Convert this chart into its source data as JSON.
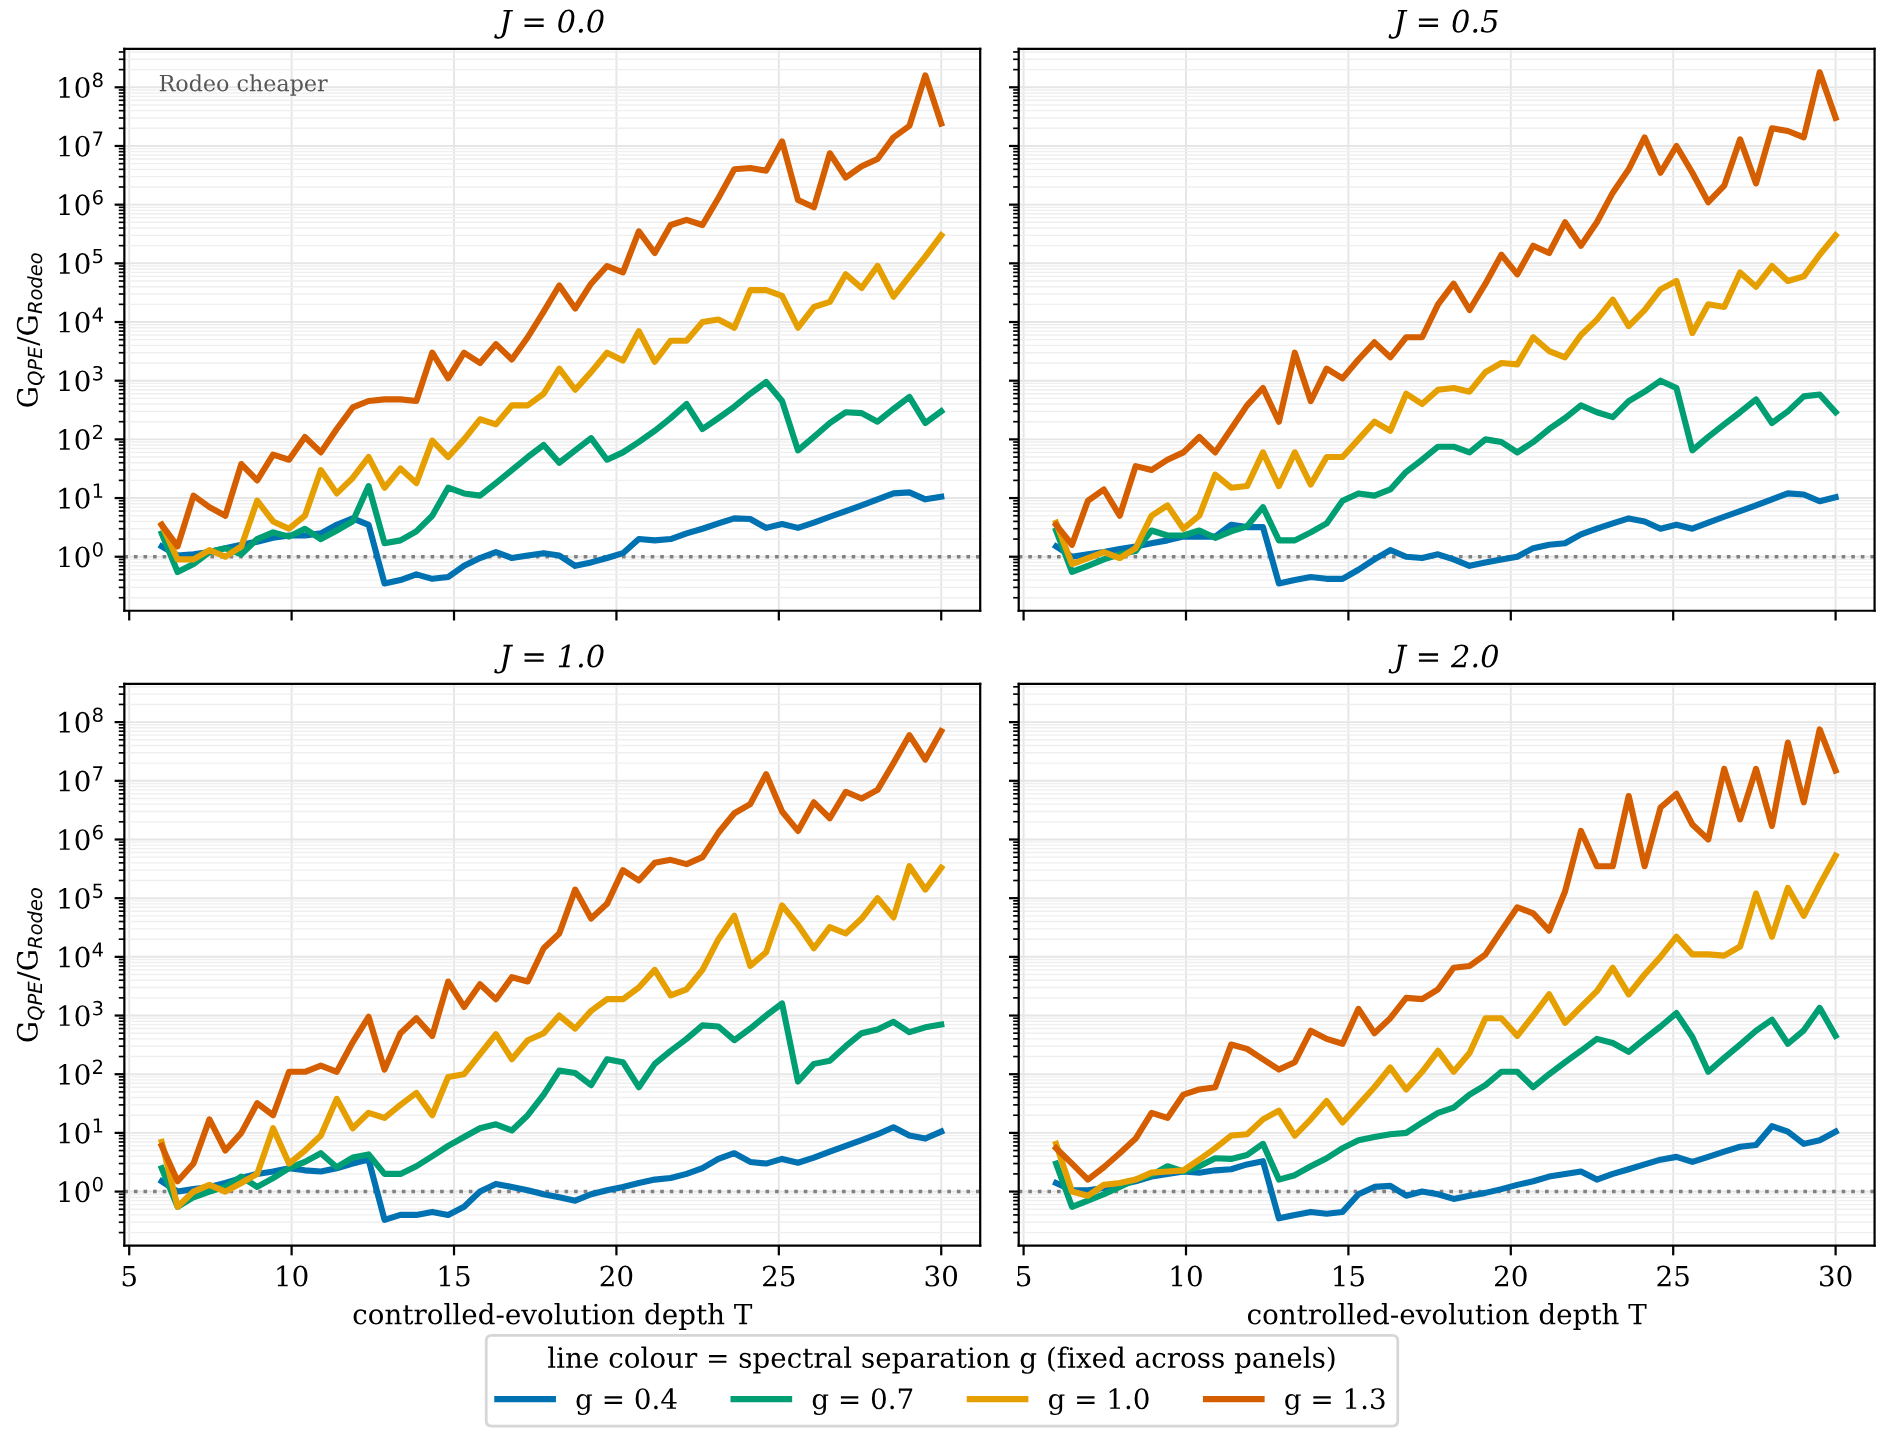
{
  "chart_data": [
    {
      "type": "line",
      "title": "J = 0.0",
      "ylabel": "G$_{QPE}$/G$_{Rodeo}$",
      "legend_title": "line colour = spectral separation g (fixed across panels)",
      "legend": "bottom",
      "log": "y",
      "grid": true,
      "tick_labels": "y",
      "annotations": [
        "Rodeo cheaper"
      ],
      "x": [
        6.0,
        6.49,
        6.98,
        7.47,
        7.96,
        8.45,
        8.94,
        9.43,
        9.92,
        10.41,
        10.9,
        11.39,
        11.88,
        12.37,
        12.86,
        13.35,
        13.84,
        14.33,
        14.82,
        15.31,
        15.8,
        16.29,
        16.78,
        17.27,
        17.76,
        18.24,
        18.73,
        19.22,
        19.71,
        20.2,
        20.69,
        21.18,
        21.67,
        22.16,
        22.65,
        23.14,
        23.63,
        24.12,
        24.61,
        25.1,
        25.59,
        26.08,
        26.57,
        27.06,
        27.55,
        28.04,
        28.53,
        29.02,
        29.51,
        30.0
      ],
      "xlim": [
        4.85,
        31.2
      ],
      "xticks": [
        5,
        10,
        15,
        20,
        25,
        30
      ],
      "ylim": [
        0.12,
        450000000.0
      ],
      "yticks": [
        {
          "value": 1,
          "label": "10$^{0}$"
        },
        {
          "value": 10,
          "label": "10$^{1}$"
        },
        {
          "value": 100,
          "label": "10$^{2}$"
        },
        {
          "value": 1000,
          "label": "10$^{3}$"
        },
        {
          "value": 10000,
          "label": "10$^{4}$"
        },
        {
          "value": 100000,
          "label": "10$^{5}$"
        },
        {
          "value": 1000000,
          "label": "10$^{6}$"
        },
        {
          "value": 10000000,
          "label": "10$^{7}$"
        },
        {
          "value": 100000000,
          "label": "10$^{8}$"
        }
      ],
      "ref_lines": [
        {
          "axis": "y",
          "value": 1,
          "color": "#808080",
          "line_style": "dotted"
        }
      ],
      "series": [
        {
          "name": "g = 0.4",
          "color": "#0072b2",
          "values": [
            1.5,
            1.05,
            1.1,
            1.2,
            1.4,
            1.6,
            1.8,
            2.1,
            2.3,
            2.3,
            2.5,
            3.5,
            4.5,
            3.5,
            0.35,
            0.4,
            0.5,
            0.42,
            0.45,
            0.7,
            0.95,
            1.2,
            0.95,
            1.05,
            1.15,
            1.05,
            0.7,
            0.8,
            0.95,
            1.15,
            2.0,
            1.9,
            2.0,
            2.5,
            3.0,
            3.7,
            4.5,
            4.4,
            3.1,
            3.6,
            3.1,
            3.8,
            4.8,
            6,
            7.5,
            9.5,
            12,
            12.5,
            9.5,
            10.5
          ]
        },
        {
          "name": "g = 0.7",
          "color": "#009e73",
          "values": [
            2.5,
            0.55,
            0.75,
            1.2,
            1.4,
            1.1,
            2.0,
            2.6,
            2.2,
            3.0,
            2.0,
            2.8,
            4,
            16,
            1.7,
            1.9,
            2.7,
            5,
            15,
            12,
            11,
            18,
            30,
            50,
            80,
            40,
            65,
            105,
            45,
            60,
            90,
            140,
            230,
            400,
            150,
            230,
            360,
            600,
            950,
            450,
            65,
            110,
            190,
            290,
            280,
            200,
            330,
            530,
            190,
            300
          ]
        },
        {
          "name": "g = 1.0",
          "color": "#e69f00",
          "values": [
            3.5,
            0.9,
            0.9,
            1.3,
            1.0,
            1.5,
            9,
            4,
            3,
            5,
            30,
            12,
            22,
            50,
            15,
            32,
            18,
            95,
            50,
            100,
            220,
            180,
            380,
            380,
            600,
            1600,
            700,
            1400,
            3000,
            2200,
            7000,
            2100,
            4800,
            4800,
            10000,
            11000,
            8000,
            35000,
            35000,
            28000,
            8000,
            18000,
            22000,
            65000,
            38000,
            90000,
            27000,
            60000,
            130000,
            300000
          ]
        },
        {
          "name": "g = 1.3",
          "color": "#d55e00",
          "values": [
            3.5,
            1.5,
            11,
            7,
            5,
            38,
            20,
            55,
            45,
            110,
            60,
            150,
            350,
            450,
            480,
            480,
            450,
            3000,
            1100,
            3000,
            2000,
            4200,
            2300,
            5500,
            15000,
            42000,
            17000,
            45000,
            90000,
            70000,
            350000,
            150000,
            450000,
            550000,
            450000,
            1300000,
            4000000,
            4200000,
            3800000,
            12000000,
            1200000,
            900000,
            7500000,
            2900000,
            4500000,
            6000000,
            14000000,
            22000000,
            160000000,
            24000000
          ]
        }
      ]
    },
    {
      "type": "line",
      "title": "J = 0.5",
      "log": "y",
      "grid": true,
      "tick_labels": false,
      "x": [
        6.0,
        6.49,
        6.98,
        7.47,
        7.96,
        8.45,
        8.94,
        9.43,
        9.92,
        10.41,
        10.9,
        11.39,
        11.88,
        12.37,
        12.86,
        13.35,
        13.84,
        14.33,
        14.82,
        15.31,
        15.8,
        16.29,
        16.78,
        17.27,
        17.76,
        18.24,
        18.73,
        19.22,
        19.71,
        20.2,
        20.69,
        21.18,
        21.67,
        22.16,
        22.65,
        23.14,
        23.63,
        24.12,
        24.61,
        25.1,
        25.59,
        26.08,
        26.57,
        27.06,
        27.55,
        28.04,
        28.53,
        29.02,
        29.51,
        30.0
      ],
      "xlim": [
        4.85,
        31.2
      ],
      "xticks": [
        {
          "value": 5,
          "label": null
        },
        {
          "value": 10,
          "label": null
        },
        {
          "value": 15,
          "label": null
        },
        {
          "value": 20,
          "label": null
        },
        {
          "value": 25,
          "label": null
        },
        {
          "value": 30,
          "label": null
        }
      ],
      "ylim": [
        0.12,
        450000000.0
      ],
      "yticks": [
        {
          "value": 1,
          "label": null
        },
        {
          "value": 10,
          "label": null
        },
        {
          "value": 100,
          "label": null
        },
        {
          "value": 1000,
          "label": null
        },
        {
          "value": 10000,
          "label": null
        },
        {
          "value": 100000,
          "label": null
        },
        {
          "value": 1000000,
          "label": null
        },
        {
          "value": 10000000,
          "label": null
        },
        {
          "value": 100000000,
          "label": null
        }
      ],
      "ref_lines": [
        {
          "axis": "y",
          "value": 1,
          "color": "#808080",
          "line_style": "dotted"
        }
      ],
      "series": [
        {
          "color": "#0072b2",
          "values": [
            1.5,
            1.0,
            1.1,
            1.2,
            1.35,
            1.5,
            1.7,
            1.9,
            2.2,
            2.2,
            2.2,
            3.5,
            3.2,
            3.2,
            0.35,
            0.4,
            0.45,
            0.42,
            0.42,
            0.6,
            0.9,
            1.3,
            1.0,
            0.95,
            1.1,
            0.9,
            0.7,
            0.8,
            0.9,
            1.0,
            1.4,
            1.6,
            1.7,
            2.4,
            3.0,
            3.7,
            4.5,
            4.0,
            3.0,
            3.5,
            3.0,
            3.8,
            4.8,
            6,
            7.5,
            9.5,
            12,
            11.5,
            8.8,
            10.3
          ]
        },
        {
          "color": "#009e73",
          "values": [
            2.8,
            0.55,
            0.7,
            0.9,
            1.1,
            1.25,
            2.8,
            2.3,
            2.3,
            2.8,
            2.1,
            2.7,
            3.3,
            7,
            1.9,
            1.9,
            2.6,
            3.7,
            9,
            12,
            11,
            14,
            28,
            45,
            75,
            75,
            60,
            100,
            90,
            60,
            90,
            150,
            230,
            380,
            290,
            240,
            450,
            650,
            1000,
            750,
            65,
            110,
            180,
            290,
            480,
            190,
            300,
            540,
            580,
            290
          ]
        },
        {
          "color": "#e69f00",
          "values": [
            3.8,
            0.75,
            0.95,
            1.2,
            0.95,
            1.4,
            5,
            7.5,
            3,
            5,
            25,
            15,
            16,
            60,
            16,
            60,
            17,
            50,
            50,
            100,
            200,
            140,
            600,
            400,
            700,
            750,
            650,
            1400,
            2000,
            1900,
            5500,
            3200,
            2500,
            6000,
            11000,
            24000,
            8500,
            16000,
            36000,
            50000,
            6500,
            20000,
            18000,
            70000,
            40000,
            90000,
            50000,
            60000,
            140000,
            300000
          ]
        },
        {
          "color": "#d55e00",
          "values": [
            3.5,
            1.6,
            9,
            14,
            5,
            35,
            30,
            45,
            60,
            110,
            60,
            150,
            380,
            750,
            200,
            3000,
            450,
            1600,
            1100,
            2300,
            4500,
            2500,
            5500,
            5500,
            20000,
            45000,
            16000,
            45000,
            140000,
            65000,
            200000,
            150000,
            500000,
            200000,
            500000,
            1600000,
            4000000,
            14000000,
            3500000,
            10000000,
            3500000,
            1100000,
            2100000,
            13000000,
            2300000,
            20000000,
            18000000,
            14000000,
            180000000,
            30000000
          ]
        }
      ]
    },
    {
      "type": "line",
      "title": "J = 1.0",
      "ylabel": "G$_{QPE}$/G$_{Rodeo}$",
      "xlabel": "controlled-evolution depth T",
      "log": "y",
      "grid": true,
      "x": [
        6.0,
        6.49,
        6.98,
        7.47,
        7.96,
        8.45,
        8.94,
        9.43,
        9.92,
        10.41,
        10.9,
        11.39,
        11.88,
        12.37,
        12.86,
        13.35,
        13.84,
        14.33,
        14.82,
        15.31,
        15.8,
        16.29,
        16.78,
        17.27,
        17.76,
        18.24,
        18.73,
        19.22,
        19.71,
        20.2,
        20.69,
        21.18,
        21.67,
        22.16,
        22.65,
        23.14,
        23.63,
        24.12,
        24.61,
        25.1,
        25.59,
        26.08,
        26.57,
        27.06,
        27.55,
        28.04,
        28.53,
        29.02,
        29.51,
        30.0
      ],
      "xlim": [
        4.85,
        31.2
      ],
      "xticks": [
        5,
        10,
        15,
        20,
        25,
        30
      ],
      "ylim": [
        0.12,
        450000000.0
      ],
      "yticks": [
        {
          "value": 1,
          "label": "10$^{0}$"
        },
        {
          "value": 10,
          "label": "10$^{1}$"
        },
        {
          "value": 100,
          "label": "10$^{2}$"
        },
        {
          "value": 1000,
          "label": "10$^{3}$"
        },
        {
          "value": 10000,
          "label": "10$^{4}$"
        },
        {
          "value": 100000,
          "label": "10$^{5}$"
        },
        {
          "value": 1000000,
          "label": "10$^{6}$"
        },
        {
          "value": 10000000,
          "label": "10$^{7}$"
        },
        {
          "value": 100000000,
          "label": "10$^{8}$"
        }
      ],
      "ref_lines": [
        {
          "axis": "y",
          "value": 1,
          "color": "#808080",
          "line_style": "dotted"
        }
      ],
      "series": [
        {
          "color": "#0072b2",
          "values": [
            1.5,
            1.0,
            1.1,
            1.2,
            1.4,
            1.7,
            2.0,
            2.2,
            2.5,
            2.3,
            2.2,
            2.5,
            3.0,
            3.5,
            0.33,
            0.4,
            0.4,
            0.45,
            0.4,
            0.55,
            1.0,
            1.35,
            1.2,
            1.05,
            0.9,
            0.8,
            0.7,
            0.9,
            1.05,
            1.2,
            1.4,
            1.6,
            1.7,
            2.0,
            2.5,
            3.6,
            4.5,
            3.2,
            3.0,
            3.6,
            3.1,
            3.8,
            4.8,
            6,
            7.5,
            9.5,
            12.5,
            9,
            8,
            10.5
          ]
        },
        {
          "color": "#009e73",
          "values": [
            2.5,
            0.55,
            0.8,
            1.0,
            1.2,
            1.8,
            1.2,
            1.7,
            2.5,
            3.2,
            4.5,
            2.6,
            3.8,
            4.3,
            2.0,
            2.0,
            2.7,
            4.0,
            6,
            8.5,
            12,
            14,
            11,
            20,
            45,
            115,
            105,
            65,
            180,
            160,
            60,
            150,
            250,
            400,
            680,
            650,
            380,
            600,
            1000,
            1600,
            75,
            150,
            170,
            300,
            500,
            580,
            780,
            520,
            630,
            700
          ]
        },
        {
          "color": "#e69f00",
          "values": [
            7,
            0.55,
            1.0,
            1.3,
            1.0,
            1.4,
            2.0,
            12,
            3,
            5,
            9,
            38,
            12,
            22,
            18,
            30,
            48,
            20,
            90,
            100,
            220,
            480,
            180,
            380,
            500,
            1000,
            600,
            1200,
            1900,
            1900,
            3000,
            6000,
            2200,
            2800,
            6000,
            20000,
            50000,
            7000,
            12000,
            75000,
            35000,
            14000,
            32000,
            25000,
            45000,
            100000,
            47000,
            350000,
            140000,
            330000
          ]
        },
        {
          "color": "#d55e00",
          "values": [
            6,
            1.5,
            3,
            17,
            5,
            10,
            32,
            20,
            110,
            110,
            140,
            110,
            350,
            950,
            120,
            500,
            900,
            450,
            3800,
            1400,
            3400,
            1900,
            4500,
            3800,
            14000,
            25000,
            140000,
            45000,
            80000,
            300000,
            200000,
            400000,
            450000,
            380000,
            500000,
            1300000,
            2800000,
            4000000,
            13000000,
            3000000,
            1400000,
            4300000,
            2300000,
            6500000,
            5000000,
            7000000,
            20000000,
            60000000,
            23000000,
            70000000
          ]
        }
      ]
    },
    {
      "type": "line",
      "title": "J = 2.0",
      "xlabel": "controlled-evolution depth T",
      "log": "y",
      "grid": true,
      "tick_labels": "x",
      "x": [
        6.0,
        6.49,
        6.98,
        7.47,
        7.96,
        8.45,
        8.94,
        9.43,
        9.92,
        10.41,
        10.9,
        11.39,
        11.88,
        12.37,
        12.86,
        13.35,
        13.84,
        14.33,
        14.82,
        15.31,
        15.8,
        16.29,
        16.78,
        17.27,
        17.76,
        18.24,
        18.73,
        19.22,
        19.71,
        20.2,
        20.69,
        21.18,
        21.67,
        22.16,
        22.65,
        23.14,
        23.63,
        24.12,
        24.61,
        25.1,
        25.59,
        26.08,
        26.57,
        27.06,
        27.55,
        28.04,
        28.53,
        29.02,
        29.51,
        30.0
      ],
      "xlim": [
        4.85,
        31.2
      ],
      "xticks": [
        5,
        10,
        15,
        20,
        25,
        30
      ],
      "ylim": [
        0.12,
        450000000.0
      ],
      "yticks": [
        {
          "value": 1,
          "label": null
        },
        {
          "value": 10,
          "label": null
        },
        {
          "value": 100,
          "label": null
        },
        {
          "value": 1000,
          "label": null
        },
        {
          "value": 10000,
          "label": null
        },
        {
          "value": 100000,
          "label": null
        },
        {
          "value": 1000000,
          "label": null
        },
        {
          "value": 10000000,
          "label": null
        },
        {
          "value": 100000000,
          "label": null
        }
      ],
      "ref_lines": [
        {
          "axis": "y",
          "value": 1,
          "color": "#808080",
          "line_style": "dotted"
        }
      ],
      "series": [
        {
          "color": "#0072b2",
          "values": [
            1.4,
            1.05,
            1.05,
            1.15,
            1.3,
            1.5,
            1.8,
            2.0,
            2.2,
            2.1,
            2.3,
            2.4,
            2.9,
            3.3,
            0.35,
            0.4,
            0.45,
            0.42,
            0.45,
            0.9,
            1.2,
            1.25,
            0.85,
            1.0,
            0.9,
            0.75,
            0.85,
            0.95,
            1.1,
            1.3,
            1.5,
            1.8,
            2.0,
            2.2,
            1.6,
            2.0,
            2.4,
            2.9,
            3.5,
            3.9,
            3.2,
            3.9,
            4.8,
            5.8,
            6.2,
            13,
            10.5,
            6.5,
            7.5,
            10.5
          ]
        },
        {
          "color": "#009e73",
          "values": [
            3,
            0.55,
            0.7,
            0.9,
            1.2,
            1.6,
            1.9,
            2.7,
            2.2,
            2.7,
            3.7,
            3.6,
            4.2,
            6.5,
            1.6,
            1.9,
            2.7,
            3.7,
            5.5,
            7.5,
            8.5,
            9.5,
            10,
            15,
            22,
            27,
            45,
            65,
            110,
            110,
            60,
            100,
            160,
            250,
            400,
            340,
            240,
            400,
            650,
            1100,
            430,
            110,
            190,
            320,
            550,
            850,
            330,
            560,
            1350,
            450
          ]
        },
        {
          "color": "#e69f00",
          "values": [
            6.5,
            1.0,
            0.85,
            1.3,
            1.4,
            1.6,
            2.1,
            2.2,
            2.3,
            3.5,
            5.5,
            9,
            9.5,
            17,
            24,
            9,
            17,
            35,
            15,
            30,
            60,
            130,
            55,
            110,
            250,
            110,
            230,
            900,
            900,
            450,
            1000,
            2300,
            750,
            1400,
            2600,
            6500,
            2300,
            5000,
            10000,
            22000,
            11000,
            11000,
            10500,
            15000,
            120000,
            22000,
            150000,
            50000,
            170000,
            530000
          ]
        },
        {
          "color": "#d55e00",
          "values": [
            5.5,
            3,
            1.6,
            2.6,
            4.5,
            8,
            22,
            18,
            45,
            55,
            60,
            320,
            270,
            180,
            120,
            160,
            550,
            400,
            330,
            1300,
            500,
            900,
            2000,
            1900,
            2800,
            6500,
            7000,
            11000,
            28000,
            70000,
            55000,
            28000,
            130000,
            1400000,
            350000,
            350000,
            5500000,
            350000,
            3500000,
            6000000,
            1800000,
            1000000,
            16000000,
            2200000,
            16000000,
            1700000,
            45000000,
            4300000,
            75000000,
            15000000
          ]
        }
      ]
    }
  ]
}
